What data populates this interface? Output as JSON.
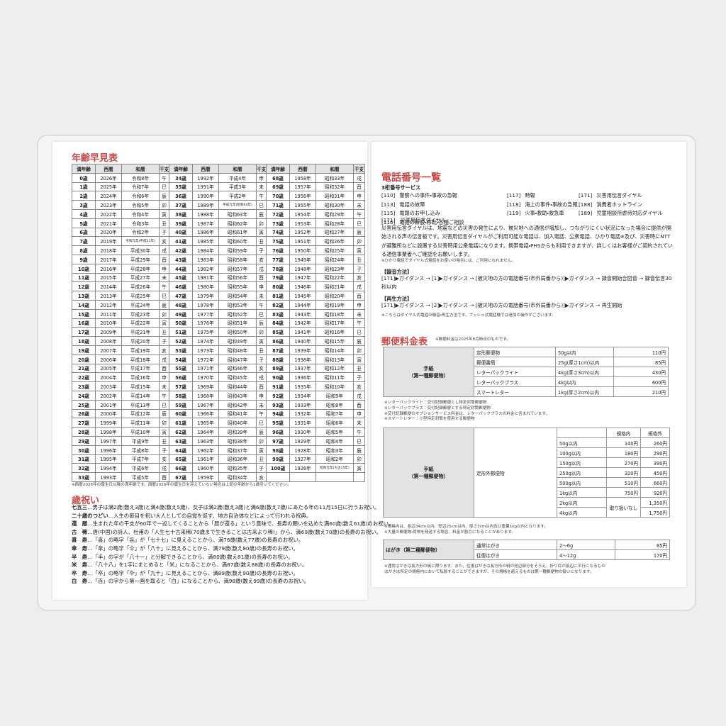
{
  "age_table": {
    "title": "年齢早見表",
    "header": [
      "満年齢",
      "西暦",
      "和暦",
      "干支",
      "満年齢",
      "西暦",
      "和暦",
      "干支",
      "満年齢",
      "西暦",
      "和暦",
      "干支"
    ],
    "rows": [
      [
        "0歳",
        "2026年",
        "令和8年",
        "午",
        "34歳",
        "1992年",
        "平成4年",
        "申",
        "68歳",
        "1958年",
        "昭和33年",
        "戌"
      ],
      [
        "1歳",
        "2025年",
        "令和7年",
        "巳",
        "35歳",
        "1991年",
        "平成3年",
        "未",
        "69歳",
        "1957年",
        "昭和32年",
        "酉"
      ],
      [
        "2歳",
        "2024年",
        "令和6年",
        "辰",
        "36歳",
        "1990年",
        "平成2年",
        "午",
        "70歳",
        "1956年",
        "昭和31年",
        "申"
      ],
      [
        "3歳",
        "2023年",
        "令和5年",
        "卯",
        "37歳",
        "1989年",
        "平成元年(昭和64年)",
        "巳",
        "71歳",
        "1955年",
        "昭和30年",
        "未"
      ],
      [
        "4歳",
        "2022年",
        "令和4年",
        "寅",
        "38歳",
        "1988年",
        "昭和63年",
        "辰",
        "72歳",
        "1954年",
        "昭和29年",
        "午"
      ],
      [
        "5歳",
        "2021年",
        "令和3年",
        "丑",
        "39歳",
        "1987年",
        "昭和62年",
        "卯",
        "73歳",
        "1953年",
        "昭和28年",
        "巳"
      ],
      [
        "6歳",
        "2020年",
        "令和2年",
        "子",
        "40歳",
        "1986年",
        "昭和61年",
        "寅",
        "74歳",
        "1952年",
        "昭和27年",
        "辰"
      ],
      [
        "7歳",
        "2019年",
        "令和元年(平成31年)",
        "亥",
        "41歳",
        "1985年",
        "昭和60年",
        "丑",
        "75歳",
        "1951年",
        "昭和26年",
        "卯"
      ],
      [
        "8歳",
        "2018年",
        "平成30年",
        "戌",
        "42歳",
        "1984年",
        "昭和59年",
        "子",
        "76歳",
        "1950年",
        "昭和25年",
        "寅"
      ],
      [
        "9歳",
        "2017年",
        "平成29年",
        "酉",
        "43歳",
        "1983年",
        "昭和58年",
        "亥",
        "77歳",
        "1949年",
        "昭和24年",
        "丑"
      ],
      [
        "10歳",
        "2016年",
        "平成28年",
        "申",
        "44歳",
        "1982年",
        "昭和57年",
        "戌",
        "78歳",
        "1948年",
        "昭和23年",
        "子"
      ],
      [
        "11歳",
        "2015年",
        "平成27年",
        "未",
        "45歳",
        "1981年",
        "昭和56年",
        "酉",
        "79歳",
        "1947年",
        "昭和22年",
        "亥"
      ],
      [
        "12歳",
        "2014年",
        "平成26年",
        "午",
        "46歳",
        "1980年",
        "昭和55年",
        "申",
        "80歳",
        "1946年",
        "昭和21年",
        "戌"
      ],
      [
        "13歳",
        "2013年",
        "平成25年",
        "巳",
        "47歳",
        "1979年",
        "昭和54年",
        "未",
        "81歳",
        "1945年",
        "昭和20年",
        "酉"
      ],
      [
        "14歳",
        "2012年",
        "平成24年",
        "辰",
        "48歳",
        "1978年",
        "昭和53年",
        "午",
        "82歳",
        "1944年",
        "昭和19年",
        "申"
      ],
      [
        "15歳",
        "2011年",
        "平成23年",
        "卯",
        "49歳",
        "1977年",
        "昭和52年",
        "巳",
        "83歳",
        "1943年",
        "昭和18年",
        "未"
      ],
      [
        "16歳",
        "2010年",
        "平成22年",
        "寅",
        "50歳",
        "1976年",
        "昭和51年",
        "辰",
        "84歳",
        "1942年",
        "昭和17年",
        "午"
      ],
      [
        "17歳",
        "2009年",
        "平成21年",
        "丑",
        "51歳",
        "1975年",
        "昭和50年",
        "卯",
        "85歳",
        "1941年",
        "昭和16年",
        "巳"
      ],
      [
        "18歳",
        "2008年",
        "平成20年",
        "子",
        "52歳",
        "1974年",
        "昭和49年",
        "寅",
        "86歳",
        "1940年",
        "昭和15年",
        "辰"
      ],
      [
        "19歳",
        "2007年",
        "平成19年",
        "亥",
        "53歳",
        "1973年",
        "昭和48年",
        "丑",
        "87歳",
        "1939年",
        "昭和14年",
        "卯"
      ],
      [
        "20歳",
        "2006年",
        "平成18年",
        "戌",
        "54歳",
        "1972年",
        "昭和47年",
        "子",
        "88歳",
        "1938年",
        "昭和13年",
        "寅"
      ],
      [
        "21歳",
        "2005年",
        "平成17年",
        "酉",
        "55歳",
        "1971年",
        "昭和46年",
        "亥",
        "89歳",
        "1937年",
        "昭和12年",
        "丑"
      ],
      [
        "22歳",
        "2004年",
        "平成16年",
        "申",
        "56歳",
        "1970年",
        "昭和45年",
        "戌",
        "90歳",
        "1936年",
        "昭和11年",
        "子"
      ],
      [
        "23歳",
        "2003年",
        "平成15年",
        "未",
        "57歳",
        "1969年",
        "昭和44年",
        "酉",
        "91歳",
        "1935年",
        "昭和10年",
        "亥"
      ],
      [
        "24歳",
        "2002年",
        "平成14年",
        "午",
        "58歳",
        "1968年",
        "昭和43年",
        "申",
        "92歳",
        "1934年",
        "昭和9年",
        "戌"
      ],
      [
        "25歳",
        "2001年",
        "平成13年",
        "巳",
        "59歳",
        "1967年",
        "昭和42年",
        "未",
        "93歳",
        "1933年",
        "昭和8年",
        "酉"
      ],
      [
        "26歳",
        "2000年",
        "平成12年",
        "辰",
        "60歳",
        "1966年",
        "昭和41年",
        "午",
        "94歳",
        "1932年",
        "昭和7年",
        "申"
      ],
      [
        "27歳",
        "1999年",
        "平成11年",
        "卯",
        "61歳",
        "1965年",
        "昭和40年",
        "巳",
        "95歳",
        "1931年",
        "昭和6年",
        "未"
      ],
      [
        "28歳",
        "1998年",
        "平成10年",
        "寅",
        "62歳",
        "1964年",
        "昭和39年",
        "辰",
        "96歳",
        "1930年",
        "昭和5年",
        "午"
      ],
      [
        "29歳",
        "1997年",
        "平成9年",
        "丑",
        "63歳",
        "1963年",
        "昭和38年",
        "卯",
        "97歳",
        "1929年",
        "昭和4年",
        "巳"
      ],
      [
        "30歳",
        "1996年",
        "平成8年",
        "子",
        "64歳",
        "1962年",
        "昭和37年",
        "寅",
        "98歳",
        "1928年",
        "昭和3年",
        "辰"
      ],
      [
        "31歳",
        "1995年",
        "平成7年",
        "亥",
        "65歳",
        "1961年",
        "昭和36年",
        "丑",
        "99歳",
        "1927年",
        "昭和2年",
        "卯"
      ],
      [
        "32歳",
        "1994年",
        "平成6年",
        "戌",
        "66歳",
        "1960年",
        "昭和35年",
        "子",
        "100歳",
        "1926年",
        "昭和元年(大正15年)",
        "寅"
      ],
      [
        "33歳",
        "1993年",
        "平成5年",
        "酉",
        "67歳",
        "1959年",
        "昭和34年",
        "亥"
      ]
    ],
    "note": "※西暦2026年の誕生日以降の満年齢です。西暦2026年の誕生日を迎えていない場合は上記の年齢から1歳引いてください。"
  },
  "celebrations": {
    "title": "歳祝い",
    "items": [
      {
        "term": "七五三",
        "text": "…男子は満2歳(数え3歳)と満4歳(数え5歳)、女子は満2歳(数え3歳)と満6歳(数え7歳)にあたる年の11月15日に行うお祝い。"
      },
      {
        "term": "二十歳のつどい",
        "text": "…人生の節目を祝い大人としての自覚を促す、地方自治体などによって行われる祝典。"
      },
      {
        "term": "還　暦",
        "text": "…生まれた年の干支が60年で一巡してくることから「暦が還る」という意味で、長寿の願いを込めた満60歳(数え61歳)のお祝い。"
      },
      {
        "term": "古　稀",
        "text": "…唐(中国)の詩人、杜甫の「人生七十古来稀(70歳まで生きることは古来より稀)」から、満69歳(数え70歳)の長寿のお祝い。"
      },
      {
        "term": "喜　寿",
        "text": "…「喜」の略字「㐂」が「七十七」に見えることから、満76歳(数え77歳)の長寿のお祝い。"
      },
      {
        "term": "傘　寿",
        "text": "…「傘」の略字「仐」が「八十」に見えることから、満79歳(数え80歳)の長寿のお祝い。"
      },
      {
        "term": "半　寿",
        "text": "…「半」の字が「八十一」と分解できることから、満80歳(数え81歳)の長寿のお祝い。"
      },
      {
        "term": "米　寿",
        "text": "…「八十八」を1字にまとめると「米」になることから、満87歳(数え88歳)の長寿のお祝い。"
      },
      {
        "term": "卒　寿",
        "text": "…「卒」の略字「卆」が「九十」に見えることから、満89歳(数え90歳)の長寿のお祝い。"
      },
      {
        "term": "白　寿",
        "text": "…「百」の字から第一画を取ると「白」になることから、満98歳(数え99歳)の長寿のお祝い。"
      }
    ]
  },
  "phone": {
    "title": "電話番号一覧",
    "subtitle": "3桁番号サービス",
    "services": [
      {
        "code": "[110]",
        "name": "警察への事件・事故の急報"
      },
      {
        "code": "[113]",
        "name": "電話の故障"
      },
      {
        "code": "[115]",
        "name": "電報のお申し込み"
      },
      {
        "code": "[116]",
        "name": "電話の新設・移転・各種ご相談"
      },
      {
        "code": "[117]",
        "name": "時報"
      },
      {
        "code": "[118]",
        "name": "海上の事件・事故の急報"
      },
      {
        "code": "[119]",
        "name": "火事・救助・救急車"
      },
      {
        "code": "[171]",
        "name": "災害用伝言ダイヤル"
      },
      {
        "code": "[188]",
        "name": "消費者ホットライン"
      },
      {
        "code": "[189]",
        "name": "児童相談所虐待対応ダイヤル"
      }
    ],
    "disaster_heading": "[171]　災害用伝言ダイヤル",
    "disaster_text": "災害用伝言ダイヤルは、地震などの災害の発生により、被災地への通信が増加し、つながりにくい状況になった場合に提供が開始される声の伝言板です。災害用伝言ダイヤルがご利用可能な電話は、加入電話、公衆電話、ひかり電話※及び、災害時にNTTが避難所などに設置する災害時用公衆電話になります。携帯電話・PHSからも利用できますが、詳しくはお客様がご契約されている通信事業者へご確認をお願いします。",
    "disaster_note": "※ひかり電話でダイヤル式電話をお使いの場合には、ご利用になれません。",
    "record_heading": "【録音方法】",
    "record_text": "[171]▶ガイダンス → [1]▶ガイダンス → [被災地の方の電話番号(市外局番から)]▶ガイダンス → 録音開始合図音 → 録音伝言30秒以内",
    "play_heading": "【再生方法】",
    "play_text": "[171]▶ガイダンス → [2]▶ガイダンス → [被災地の方の電話番号(市外局番から)]▶ガイダンス → 再生開始",
    "play_note": "※こちらはダイヤル式電話の録音・再生方法です。プッシュ式電話機では追加の操作がございます。"
  },
  "postal": {
    "title": "郵便料金表",
    "note": "※郵便料金は2025年8月時点のものです。",
    "letter_label": [
      "手紙",
      "（第一種郵便物）"
    ],
    "standard_rows": [
      [
        "定形郵便物",
        "50g以内",
        "110円"
      ],
      [
        "郵便書簡",
        "25g(厚さ1cm)以内",
        "85円"
      ],
      [
        "レターパックライト",
        "4kg(厚さ3cm)以内",
        "430円"
      ],
      [
        "レターパックプラス",
        "4kg以内",
        "600円"
      ],
      [
        "スマートレター",
        "1kg(厚さ2cm)以内",
        "210円"
      ]
    ],
    "standard_notes": [
      "※レターパックライト：交付記録郵便とし特定封筒郵便物",
      "※レターパックプラス：交付記録郵便とする特定封筒郵便物",
      "※交付記録郵便のオプションサービス料金は、レターパックプラスの料金に含まれています。",
      "※スマートレター：小型特定封筒を使用する郵便物"
    ],
    "nonstandard_type": "定形外郵便物",
    "nonstandard_header": [
      "規格内",
      "規格外"
    ],
    "nonstandard_rows": [
      [
        "50g以内",
        "140円",
        "260円"
      ],
      [
        "100g以内",
        "180円",
        "290円"
      ],
      [
        "150g以内",
        "270円",
        "390円"
      ],
      [
        "250g以内",
        "320円",
        "450円"
      ],
      [
        "500g以内",
        "510円",
        "660円"
      ],
      [
        "1kg以内",
        "750円",
        "920円"
      ],
      [
        "2kg以内",
        "取り扱いなし",
        "1,350円"
      ],
      [
        "4kg以内",
        "1,750円"
      ]
    ],
    "nonstandard_notes": [
      "※規格内は、長辺34cm以内、短辺25cm以内、厚さ3cm以内及び重量1kg以内となります。",
      "※大量の郵便物・荷物を発送する場合、料金が割引になることがあります。"
    ],
    "postcard_label": "はがき（第二種郵便物）",
    "postcard_rows": [
      [
        "通常はがき",
        "2～6g",
        "85円"
      ],
      [
        "往復はがき",
        "4～12g",
        "170円"
      ]
    ],
    "postcard_notes": [
      "※通常はがきは長方形の紙に限ります。また、往復はがきは長方形の紙の短辺部分をそろえ、折り目が長辺に平行になるもの",
      "はがきは所定の規格内において私製することができますが、その規格を超えるものは第一種郵便物の扱いになります。"
    ]
  }
}
